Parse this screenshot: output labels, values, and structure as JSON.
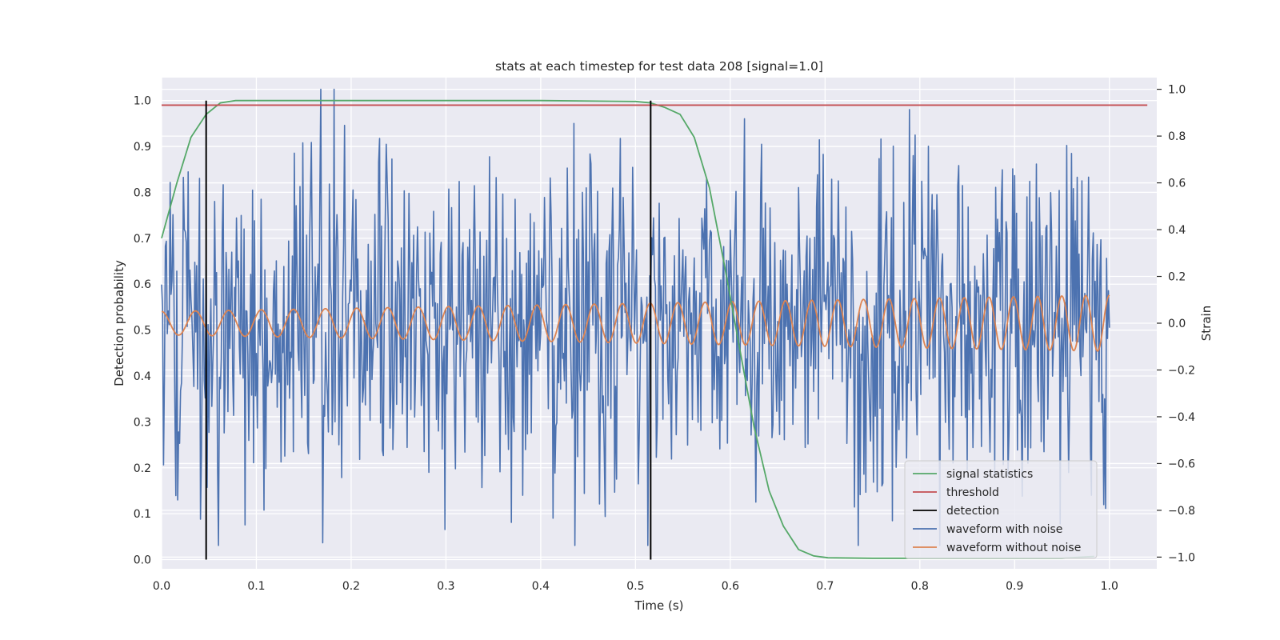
{
  "chart_data": {
    "type": "line",
    "title": "stats at each timestep for test data 208 [signal=1.0]",
    "xlabel": "Time (s)",
    "ylabel": "Detection probability",
    "y2label": "Strain",
    "xlim": [
      0.0,
      1.05
    ],
    "ylim": [
      -0.02,
      1.05
    ],
    "y2lim": [
      -1.05,
      1.05
    ],
    "xticks": [
      "0.0",
      "0.1",
      "0.2",
      "0.3",
      "0.4",
      "0.5",
      "0.6",
      "0.7",
      "0.8",
      "0.9",
      "1.0"
    ],
    "yticks": [
      "0.0",
      "0.1",
      "0.2",
      "0.3",
      "0.4",
      "0.5",
      "0.6",
      "0.7",
      "0.8",
      "0.9",
      "1.0"
    ],
    "y2ticks": [
      "−1.0",
      "−0.8",
      "−0.6",
      "−0.4",
      "−0.2",
      "0.0",
      "0.2",
      "0.4",
      "0.6",
      "0.8",
      "1.0"
    ],
    "grid": true,
    "legend_position": "bottom-right",
    "colors": {
      "signal_statistics": "#55a868",
      "threshold": "#c44e52",
      "detection": "#000000",
      "waveform_with_noise": "#4c72b0",
      "waveform_without_noise": "#dd8452",
      "plot_background": "#eaeaf2",
      "grid": "#ffffff"
    },
    "series": [
      {
        "name": "signal statistics",
        "axis": "left",
        "x": [
          0.0,
          0.016,
          0.031,
          0.047,
          0.062,
          0.078,
          0.1,
          0.2,
          0.3,
          0.4,
          0.5,
          0.516,
          0.531,
          0.547,
          0.562,
          0.578,
          0.594,
          0.609,
          0.625,
          0.641,
          0.656,
          0.672,
          0.688,
          0.703,
          0.75,
          0.8,
          0.85,
          0.9,
          0.95,
          0.984
        ],
        "y": [
          0.7,
          0.82,
          0.92,
          0.97,
          0.995,
          1.0,
          1.0,
          1.0,
          1.0,
          1.0,
          0.998,
          0.995,
          0.985,
          0.97,
          0.92,
          0.81,
          0.64,
          0.47,
          0.29,
          0.15,
          0.073,
          0.022,
          0.008,
          0.004,
          0.003,
          0.003,
          0.003,
          0.003,
          0.003,
          0.007
        ]
      },
      {
        "name": "threshold",
        "axis": "left",
        "x": [
          0.0,
          1.04
        ],
        "y": [
          0.99,
          0.99
        ]
      },
      {
        "name": "detection",
        "axis": "left",
        "segments": [
          {
            "x": 0.047,
            "y": [
              0.0,
              1.0
            ]
          },
          {
            "x": 0.516,
            "y": [
              0.0,
              1.0
            ]
          }
        ]
      },
      {
        "name": "waveform with noise",
        "axis": "right",
        "x_range": [
          0.0,
          1.0
        ],
        "amplitude_range": [
          -0.95,
          1.0
        ]
      },
      {
        "name": "waveform without noise",
        "axis": "right",
        "x_range": [
          0.0,
          1.0
        ],
        "cycles": 34,
        "amplitude_start": 0.05,
        "amplitude_end": 0.12
      }
    ]
  }
}
